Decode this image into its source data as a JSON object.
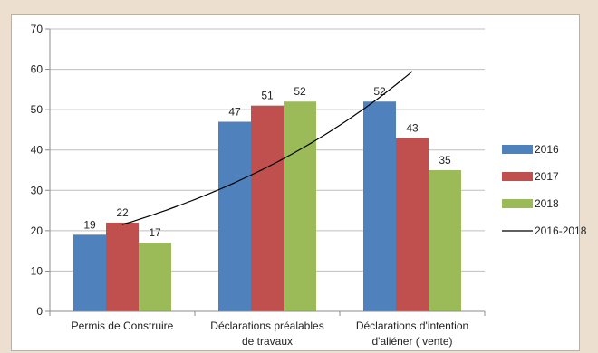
{
  "chart_data": {
    "type": "bar",
    "categories": [
      [
        "Permis de Construire"
      ],
      [
        "Déclarations préalables",
        "de travaux"
      ],
      [
        "Déclarations d'intention",
        "d'aliéner ( vente)"
      ]
    ],
    "series": [
      {
        "name": "2016",
        "color": "#4f81bd",
        "values": [
          19,
          47,
          52
        ]
      },
      {
        "name": "2017",
        "color": "#c0504d",
        "values": [
          22,
          51,
          43
        ]
      },
      {
        "name": "2018",
        "color": "#9bbb59",
        "values": [
          17,
          52,
          35
        ]
      }
    ],
    "trendline": {
      "name": "2016-2018",
      "type": "exponential",
      "color": "#000000",
      "points": [
        [
          1,
          21.5
        ],
        [
          2,
          38
        ],
        [
          3,
          59.5
        ]
      ]
    },
    "ylim": [
      0,
      70
    ],
    "yticks": [
      0,
      10,
      20,
      30,
      40,
      50,
      60,
      70
    ],
    "grid": true,
    "legend_position": "right"
  }
}
